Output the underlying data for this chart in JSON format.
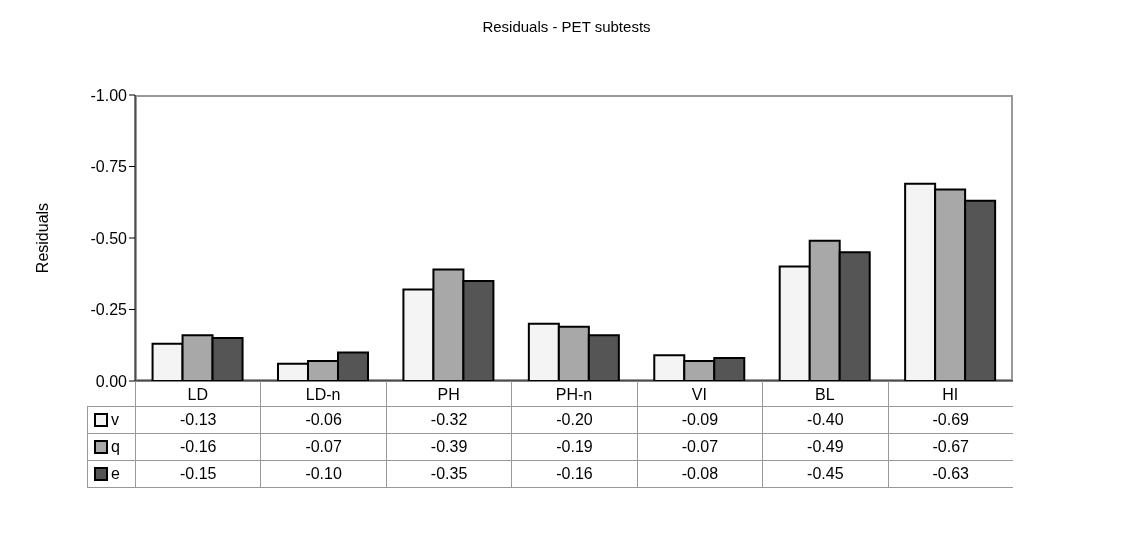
{
  "chart_data": {
    "type": "bar",
    "title": "Residuals - PET subtests",
    "ylabel": "Residuals",
    "categories": [
      "LD",
      "LD-n",
      "PH",
      "PH-n",
      "VI",
      "BL",
      "HI"
    ],
    "series": [
      {
        "name": "v",
        "color": "#f4f4f4",
        "values": [
          -0.13,
          -0.06,
          -0.32,
          -0.2,
          -0.09,
          -0.4,
          -0.69
        ],
        "value_labels": [
          "-0.13",
          "-0.06",
          "-0.32",
          "-0.20",
          "-0.09",
          "-0.40",
          "-0.69"
        ]
      },
      {
        "name": "q",
        "color": "#a8a8a8",
        "values": [
          -0.16,
          -0.07,
          -0.39,
          -0.19,
          -0.07,
          -0.49,
          -0.67
        ],
        "value_labels": [
          "-0.16",
          "-0.07",
          "-0.39",
          "-0.19",
          "-0.07",
          "-0.49",
          "-0.67"
        ]
      },
      {
        "name": "e",
        "color": "#555555",
        "values": [
          -0.15,
          -0.1,
          -0.35,
          -0.16,
          -0.08,
          -0.45,
          -0.63
        ],
        "value_labels": [
          "-0.15",
          "-0.10",
          "-0.35",
          "-0.16",
          "-0.08",
          "-0.45",
          "-0.63"
        ]
      }
    ],
    "ylim": [
      0,
      -1
    ],
    "yticks": [
      {
        "value": 0,
        "label": "0.00"
      },
      {
        "value": -0.25,
        "label": "-0.25"
      },
      {
        "value": -0.5,
        "label": "-0.50"
      },
      {
        "value": -0.75,
        "label": "-0.75"
      },
      {
        "value": -1,
        "label": "-1.00"
      }
    ],
    "legend": "bottom"
  }
}
